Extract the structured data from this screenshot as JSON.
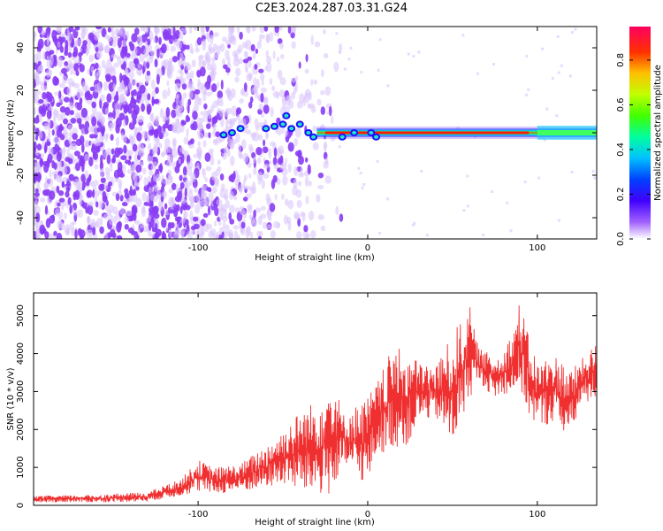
{
  "figure": {
    "title": "C2E3.2024.287.03.31.G24"
  },
  "chart_data": [
    {
      "type": "heatmap",
      "xlabel": "Height of straight line (km)",
      "ylabel": "Frequency (Hz)",
      "xlim": [
        -197,
        135
      ],
      "ylim": [
        -50,
        50
      ],
      "xticks": [
        -100,
        0,
        100
      ],
      "yticks": [
        -40,
        -20,
        0,
        20,
        40
      ],
      "colorbar": {
        "label": "Normalized spectral amplitude",
        "range": [
          0,
          0.95
        ],
        "ticks": [
          0.0,
          0.2,
          0.4,
          0.6,
          0.8
        ],
        "tick_labels": [
          "0.0",
          "0.2",
          "0.4",
          "0.6",
          "0.8"
        ],
        "colors": [
          "#ffffff",
          "#8000ff",
          "#0000ff",
          "#00c8ff",
          "#00ff80",
          "#80ff00",
          "#ffff00",
          "#ff8000",
          "#ff0000",
          "#ff0080"
        ]
      },
      "features": {
        "noise_region_x": [
          -197,
          -30
        ],
        "signal_band_start_x": -30,
        "signal_band_end_x": 135,
        "signal_center_hz": 0,
        "signal_peak_x_range": [
          -25,
          95
        ]
      },
      "colors": {
        "noise": "#8a3cf5",
        "noise_light": "#d9c3fb"
      }
    },
    {
      "type": "line",
      "xlabel": "Height of straight line (km)",
      "ylabel": "SNR (10 * v/v)",
      "xlim": [
        -197,
        135
      ],
      "ylim": [
        0,
        5600
      ],
      "xticks": [
        -100,
        0,
        100
      ],
      "yticks": [
        0,
        1000,
        2000,
        3000,
        4000,
        5000
      ],
      "color": "#f03030",
      "envelope": {
        "x": [
          -197,
          -160,
          -130,
          -110,
          -100,
          -90,
          -75,
          -60,
          -50,
          -40,
          -30,
          -20,
          -15,
          -5,
          0,
          5,
          15,
          25,
          30,
          40,
          50,
          60,
          65,
          75,
          85,
          90,
          95,
          100,
          110,
          120,
          125,
          135
        ],
        "lo": [
          80,
          80,
          100,
          250,
          350,
          300,
          350,
          450,
          550,
          350,
          250,
          250,
          1000,
          700,
          500,
          1300,
          1500,
          1600,
          2200,
          2300,
          1500,
          2800,
          3300,
          2800,
          3000,
          2900,
          2400,
          2000,
          2200,
          1700,
          2600,
          2800
        ],
        "hi": [
          250,
          280,
          350,
          700,
          1200,
          1000,
          1100,
          1600,
          2000,
          2500,
          2800,
          3500,
          2400,
          2700,
          2900,
          3200,
          4200,
          4000,
          3800,
          3700,
          4500,
          5300,
          4200,
          3900,
          4500,
          5500,
          4400,
          3800,
          4000,
          3600,
          3800,
          4300
        ]
      }
    }
  ]
}
